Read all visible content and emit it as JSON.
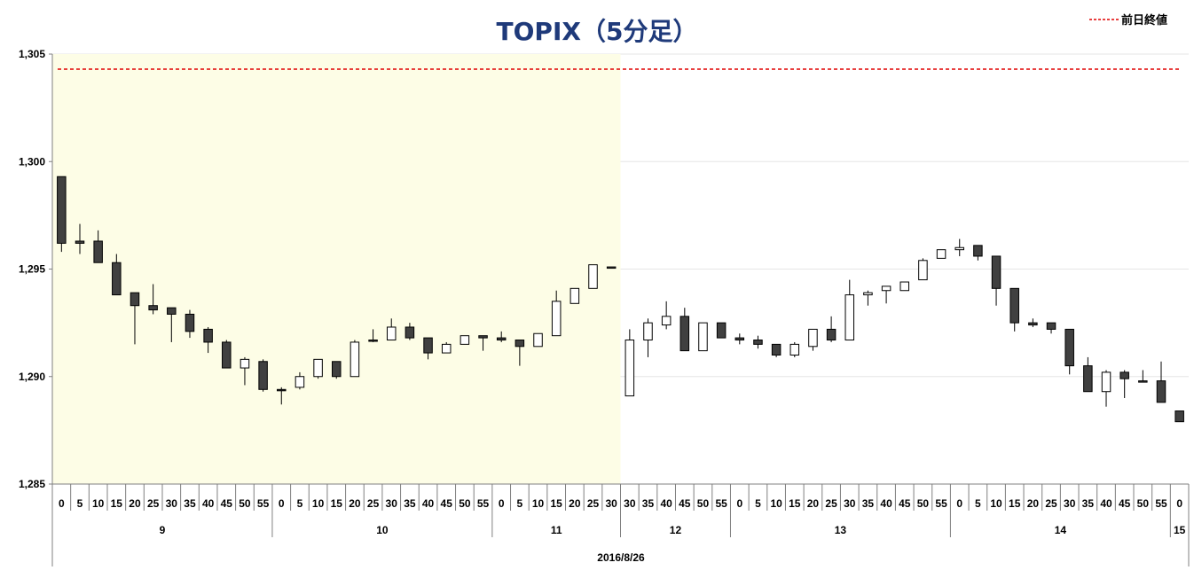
{
  "chart_data": {
    "type": "candlestick",
    "title": "TOPIX（5分足）",
    "legend": {
      "label": "前日終値",
      "position": "top-right",
      "color": "#e00000",
      "style": "dashed"
    },
    "prev_close": 1304.3,
    "ylim": [
      1285,
      1305
    ],
    "yticks": [
      "1,285",
      "1,290",
      "1,295",
      "1,300",
      "1,305"
    ],
    "ytick_values": [
      1285,
      1290,
      1295,
      1300,
      1305
    ],
    "date_label": "2016/8/26",
    "morning_session_shading": "#fdfde6",
    "up_color": "#ffffff",
    "down_color": "#404040",
    "morning": {
      "minute_labels": [
        "0",
        "5",
        "10",
        "15",
        "20",
        "25",
        "30",
        "35",
        "40",
        "45",
        "50",
        "55",
        "0",
        "5",
        "10",
        "15",
        "20",
        "25",
        "30",
        "35",
        "40",
        "45",
        "50",
        "55",
        "0",
        "5",
        "10",
        "15",
        "20",
        "25",
        "30"
      ],
      "hour_groups": [
        {
          "label": "9",
          "count": 12
        },
        {
          "label": "10",
          "count": 12
        },
        {
          "label": "11",
          "count": 7
        }
      ],
      "candles": [
        {
          "o": 1299.3,
          "h": 1299.3,
          "l": 1295.8,
          "c": 1296.2
        },
        {
          "o": 1296.3,
          "h": 1297.1,
          "l": 1295.7,
          "c": 1296.2
        },
        {
          "o": 1296.3,
          "h": 1296.8,
          "l": 1295.3,
          "c": 1295.3
        },
        {
          "o": 1295.3,
          "h": 1295.7,
          "l": 1293.8,
          "c": 1293.8
        },
        {
          "o": 1293.9,
          "h": 1293.9,
          "l": 1291.5,
          "c": 1293.3
        },
        {
          "o": 1293.3,
          "h": 1294.3,
          "l": 1292.9,
          "c": 1293.1
        },
        {
          "o": 1293.2,
          "h": 1293.2,
          "l": 1291.6,
          "c": 1292.9
        },
        {
          "o": 1292.9,
          "h": 1293.1,
          "l": 1291.8,
          "c": 1292.1
        },
        {
          "o": 1292.2,
          "h": 1292.3,
          "l": 1291.1,
          "c": 1291.6
        },
        {
          "o": 1291.6,
          "h": 1291.7,
          "l": 1290.4,
          "c": 1290.4
        },
        {
          "o": 1290.4,
          "h": 1290.9,
          "l": 1289.6,
          "c": 1290.8
        },
        {
          "o": 1290.7,
          "h": 1290.8,
          "l": 1289.3,
          "c": 1289.4
        },
        {
          "o": 1289.4,
          "h": 1289.5,
          "l": 1288.7,
          "c": 1289.4
        },
        {
          "o": 1289.5,
          "h": 1290.2,
          "l": 1289.4,
          "c": 1290.0
        },
        {
          "o": 1290.0,
          "h": 1290.8,
          "l": 1289.9,
          "c": 1290.8
        },
        {
          "o": 1290.7,
          "h": 1290.7,
          "l": 1289.9,
          "c": 1290.0
        },
        {
          "o": 1290.0,
          "h": 1291.7,
          "l": 1290.0,
          "c": 1291.6
        },
        {
          "o": 1291.7,
          "h": 1292.2,
          "l": 1291.6,
          "c": 1291.7
        },
        {
          "o": 1291.7,
          "h": 1292.7,
          "l": 1291.7,
          "c": 1292.3
        },
        {
          "o": 1292.3,
          "h": 1292.5,
          "l": 1291.7,
          "c": 1291.8
        },
        {
          "o": 1291.8,
          "h": 1291.8,
          "l": 1290.8,
          "c": 1291.1
        },
        {
          "o": 1291.1,
          "h": 1291.6,
          "l": 1291.1,
          "c": 1291.5
        },
        {
          "o": 1291.5,
          "h": 1291.9,
          "l": 1291.5,
          "c": 1291.9
        },
        {
          "o": 1291.9,
          "h": 1291.9,
          "l": 1291.2,
          "c": 1291.8
        },
        {
          "o": 1291.8,
          "h": 1292.1,
          "l": 1291.6,
          "c": 1291.7
        },
        {
          "o": 1291.7,
          "h": 1291.7,
          "l": 1290.5,
          "c": 1291.4
        },
        {
          "o": 1291.4,
          "h": 1292.0,
          "l": 1291.4,
          "c": 1292.0
        },
        {
          "o": 1291.9,
          "h": 1294.0,
          "l": 1291.9,
          "c": 1293.5
        },
        {
          "o": 1293.4,
          "h": 1294.1,
          "l": 1293.4,
          "c": 1294.1
        },
        {
          "o": 1294.1,
          "h": 1295.2,
          "l": 1294.1,
          "c": 1295.2
        },
        {
          "o": 1295.1,
          "h": 1295.1,
          "l": 1295.1,
          "c": 1295.1
        }
      ]
    },
    "afternoon": {
      "minute_labels": [
        "30",
        "35",
        "40",
        "45",
        "50",
        "55",
        "0",
        "5",
        "10",
        "15",
        "20",
        "25",
        "30",
        "35",
        "40",
        "45",
        "50",
        "55",
        "0",
        "5",
        "10",
        "15",
        "20",
        "25",
        "30",
        "35",
        "40",
        "45",
        "50",
        "55",
        "0"
      ],
      "hour_groups": [
        {
          "label": "12",
          "count": 6
        },
        {
          "label": "13",
          "count": 12
        },
        {
          "label": "14",
          "count": 12
        },
        {
          "label": "15",
          "count": 1
        }
      ],
      "candles": [
        {
          "o": 1289.1,
          "h": 1292.2,
          "l": 1289.1,
          "c": 1291.7
        },
        {
          "o": 1291.7,
          "h": 1292.7,
          "l": 1290.9,
          "c": 1292.5
        },
        {
          "o": 1292.4,
          "h": 1293.5,
          "l": 1292.2,
          "c": 1292.8
        },
        {
          "o": 1292.8,
          "h": 1293.2,
          "l": 1291.2,
          "c": 1291.2
        },
        {
          "o": 1291.2,
          "h": 1292.5,
          "l": 1291.2,
          "c": 1292.5
        },
        {
          "o": 1292.5,
          "h": 1292.5,
          "l": 1291.8,
          "c": 1291.8
        },
        {
          "o": 1291.8,
          "h": 1292.0,
          "l": 1291.5,
          "c": 1291.7
        },
        {
          "o": 1291.7,
          "h": 1291.9,
          "l": 1291.3,
          "c": 1291.5
        },
        {
          "o": 1291.5,
          "h": 1291.5,
          "l": 1290.9,
          "c": 1291.0
        },
        {
          "o": 1291.0,
          "h": 1291.6,
          "l": 1290.9,
          "c": 1291.5
        },
        {
          "o": 1291.4,
          "h": 1292.2,
          "l": 1291.2,
          "c": 1292.2
        },
        {
          "o": 1292.2,
          "h": 1292.8,
          "l": 1291.6,
          "c": 1291.7
        },
        {
          "o": 1291.7,
          "h": 1294.5,
          "l": 1291.7,
          "c": 1293.8
        },
        {
          "o": 1293.8,
          "h": 1294.0,
          "l": 1293.3,
          "c": 1293.9
        },
        {
          "o": 1294.0,
          "h": 1294.2,
          "l": 1293.4,
          "c": 1294.2
        },
        {
          "o": 1294.0,
          "h": 1294.4,
          "l": 1294.0,
          "c": 1294.4
        },
        {
          "o": 1294.5,
          "h": 1295.5,
          "l": 1294.5,
          "c": 1295.4
        },
        {
          "o": 1295.5,
          "h": 1295.9,
          "l": 1295.5,
          "c": 1295.9
        },
        {
          "o": 1295.9,
          "h": 1296.4,
          "l": 1295.6,
          "c": 1296.0
        },
        {
          "o": 1296.1,
          "h": 1296.1,
          "l": 1295.4,
          "c": 1295.6
        },
        {
          "o": 1295.6,
          "h": 1295.6,
          "l": 1293.3,
          "c": 1294.1
        },
        {
          "o": 1294.1,
          "h": 1294.1,
          "l": 1292.1,
          "c": 1292.5
        },
        {
          "o": 1292.5,
          "h": 1292.7,
          "l": 1292.3,
          "c": 1292.4
        },
        {
          "o": 1292.5,
          "h": 1292.5,
          "l": 1292.0,
          "c": 1292.2
        },
        {
          "o": 1292.2,
          "h": 1292.2,
          "l": 1290.1,
          "c": 1290.5
        },
        {
          "o": 1290.5,
          "h": 1290.9,
          "l": 1289.3,
          "c": 1289.3
        },
        {
          "o": 1289.3,
          "h": 1290.3,
          "l": 1288.6,
          "c": 1290.2
        },
        {
          "o": 1290.2,
          "h": 1290.3,
          "l": 1289.0,
          "c": 1289.9
        },
        {
          "o": 1289.8,
          "h": 1290.3,
          "l": 1289.8,
          "c": 1289.8
        },
        {
          "o": 1289.8,
          "h": 1290.7,
          "l": 1288.8,
          "c": 1288.8
        },
        {
          "o": 1288.4,
          "h": 1288.4,
          "l": 1287.9,
          "c": 1287.9
        }
      ]
    }
  }
}
